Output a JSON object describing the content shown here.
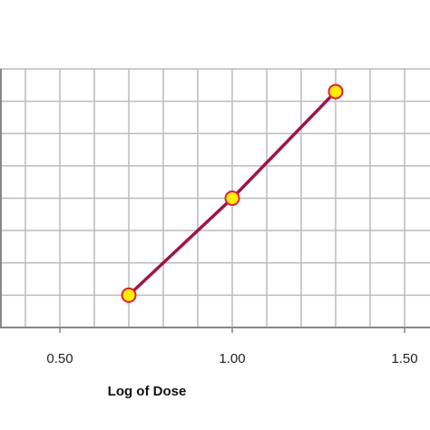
{
  "chart_data": {
    "type": "line",
    "title": "",
    "xlabel": "Log of Dose",
    "ylabel": "",
    "xlim": [
      0.0,
      1.5
    ],
    "ylim": [
      0,
      8
    ],
    "x_ticks": [
      0.5,
      1.0,
      1.5
    ],
    "x_tick_labels": [
      "0.50",
      "1.00",
      "1.50"
    ],
    "y_gridlines": [
      0,
      1,
      2,
      3,
      4,
      5,
      6,
      7,
      8
    ],
    "x_minor_step": 0.1,
    "grid": true,
    "legend": "none",
    "series": [
      {
        "x": [
          0.7,
          1.0,
          1.3
        ],
        "y": [
          1,
          4,
          7.3
        ]
      }
    ]
  },
  "colors": {
    "line": "#a0144a",
    "marker_fill": "#ffee00",
    "marker_stroke": "#e0203c",
    "grid": "#bcbcbc",
    "axis": "#888888"
  }
}
